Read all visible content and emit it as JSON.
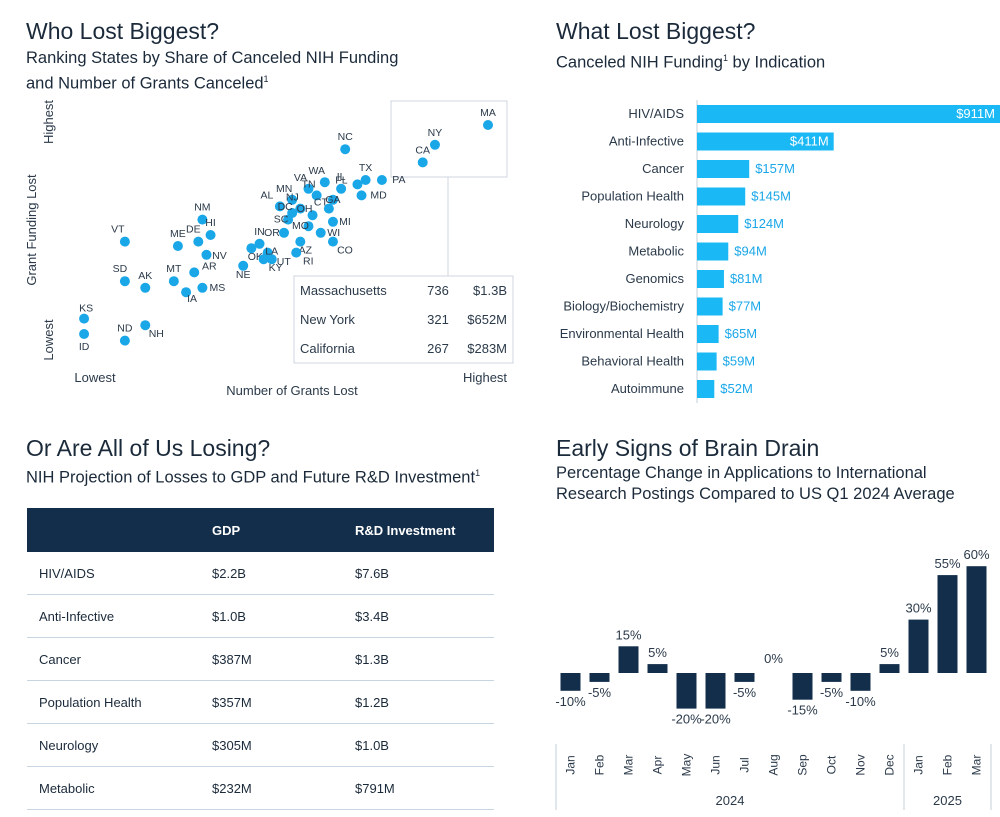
{
  "panel1": {
    "title": "Who Lost Biggest?",
    "subtitle_line1": "Ranking States by Share of Canceled NIH Funding",
    "subtitle_line2": "and Number of Grants Canceled",
    "subtitle_sup": "1"
  },
  "panel2": {
    "title": "What Lost Biggest?",
    "subtitle": "Canceled NIH Funding",
    "subtitle_sup": "1",
    "subtitle_tail": " by Indication"
  },
  "panel3": {
    "title": "Or Are All of Us Losing?",
    "subtitle": "NIH Projection of Losses to GDP and Future R&D Investment",
    "subtitle_sup": "1"
  },
  "panel4": {
    "title": "Early Signs of Brain Drain",
    "subtitle_line1": "Percentage Change in Applications to International",
    "subtitle_line2": "Research Postings Compared to US Q1 2024 Average"
  },
  "table": {
    "headers": [
      "",
      "GDP",
      "R&D Investment"
    ],
    "rows": [
      [
        "HIV/AIDS",
        "$2.2B",
        "$7.6B"
      ],
      [
        "Anti-Infective",
        "$1.0B",
        "$3.4B"
      ],
      [
        "Cancer",
        "$387M",
        "$1.3B"
      ],
      [
        "Population Health",
        "$357M",
        "$1.2B"
      ],
      [
        "Neurology",
        "$305M",
        "$1.0B"
      ],
      [
        "Metabolic",
        "$232M",
        "$791M"
      ]
    ]
  },
  "colors": {
    "scatter_point": "#1aa7e8",
    "hbar": "#1ab8f5",
    "hbar_label": "#1aa7e8",
    "vbar": "#132e4b",
    "header_bg": "#132e4b"
  },
  "chart_data": [
    {
      "type": "scatter",
      "title": "Who Lost Biggest?",
      "xlabel": "Number of Grants Lost",
      "ylabel": "Grant Funding Lost",
      "x_low_label": "Lowest",
      "x_high_label": "Highest",
      "y_low_label": "Lowest",
      "y_high_label": "Highest",
      "xlim": [
        0,
        100
      ],
      "ylim": [
        0,
        100
      ],
      "points": [
        {
          "label": "MA",
          "x": 100,
          "y": 100
        },
        {
          "label": "NY",
          "x": 87,
          "y": 91
        },
        {
          "label": "CA",
          "x": 84,
          "y": 83
        },
        {
          "label": "NC",
          "x": 65,
          "y": 89
        },
        {
          "label": "TX",
          "x": 70,
          "y": 75
        },
        {
          "label": "PA",
          "x": 74,
          "y": 75
        },
        {
          "label": "FL",
          "x": 68,
          "y": 73
        },
        {
          "label": "MD",
          "x": 69,
          "y": 68
        },
        {
          "label": "IL",
          "x": 64,
          "y": 71
        },
        {
          "label": "WA",
          "x": 60,
          "y": 74
        },
        {
          "label": "VA",
          "x": 56,
          "y": 71
        },
        {
          "label": "TN",
          "x": 58,
          "y": 68
        },
        {
          "label": "MN",
          "x": 52,
          "y": 66
        },
        {
          "label": "NJ",
          "x": 54,
          "y": 62
        },
        {
          "label": "GA",
          "x": 62,
          "y": 66
        },
        {
          "label": "OH",
          "x": 57,
          "y": 59
        },
        {
          "label": "CT",
          "x": 61,
          "y": 62
        },
        {
          "label": "MI",
          "x": 62,
          "y": 56
        },
        {
          "label": "AL",
          "x": 49,
          "y": 63
        },
        {
          "label": "DC",
          "x": 52,
          "y": 60
        },
        {
          "label": "SC",
          "x": 51,
          "y": 57
        },
        {
          "label": "MO",
          "x": 56,
          "y": 54
        },
        {
          "label": "WI",
          "x": 59,
          "y": 51
        },
        {
          "label": "CO",
          "x": 62,
          "y": 47
        },
        {
          "label": "AZ",
          "x": 54,
          "y": 47
        },
        {
          "label": "OR",
          "x": 50,
          "y": 51
        },
        {
          "label": "RI",
          "x": 53,
          "y": 42
        },
        {
          "label": "UT",
          "x": 47,
          "y": 39
        },
        {
          "label": "IN",
          "x": 44,
          "y": 46
        },
        {
          "label": "OK",
          "x": 42,
          "y": 44
        },
        {
          "label": "LA",
          "x": 46,
          "y": 42
        },
        {
          "label": "KY",
          "x": 45,
          "y": 39
        },
        {
          "label": "NE",
          "x": 40,
          "y": 36
        },
        {
          "label": "NM",
          "x": 30,
          "y": 57
        },
        {
          "label": "HI",
          "x": 32,
          "y": 50
        },
        {
          "label": "DE",
          "x": 29,
          "y": 47
        },
        {
          "label": "NV",
          "x": 31,
          "y": 41
        },
        {
          "label": "ME",
          "x": 24,
          "y": 45
        },
        {
          "label": "AR",
          "x": 28,
          "y": 33
        },
        {
          "label": "MT",
          "x": 23,
          "y": 29
        },
        {
          "label": "IA",
          "x": 26,
          "y": 24
        },
        {
          "label": "MS",
          "x": 30,
          "y": 26
        },
        {
          "label": "AK",
          "x": 16,
          "y": 26
        },
        {
          "label": "NH",
          "x": 16,
          "y": 9
        },
        {
          "label": "VT",
          "x": 11,
          "y": 47
        },
        {
          "label": "SD",
          "x": 11,
          "y": 29
        },
        {
          "label": "ND",
          "x": 11,
          "y": 2
        },
        {
          "label": "KS",
          "x": 1,
          "y": 12
        },
        {
          "label": "ID",
          "x": 1,
          "y": 5
        }
      ],
      "inset_table": [
        [
          "Massachusetts",
          "736",
          "$1.3B"
        ],
        [
          "New York",
          "321",
          "$652M"
        ],
        [
          "California",
          "267",
          "$283M"
        ]
      ]
    },
    {
      "type": "bar",
      "orientation": "horizontal",
      "title": "What Lost Biggest?",
      "categories": [
        "HIV/AIDS",
        "Anti-Infective",
        "Cancer",
        "Population Health",
        "Neurology",
        "Metabolic",
        "Genomics",
        "Biology/Biochemistry",
        "Environmental Health",
        "Behavioral Health",
        "Autoimmune"
      ],
      "values": [
        911,
        411,
        157,
        145,
        124,
        94,
        81,
        77,
        65,
        59,
        52
      ],
      "value_labels": [
        "$911M",
        "$411M",
        "$157M",
        "$145M",
        "$124M",
        "$94M",
        "$81M",
        "$77M",
        "$65M",
        "$59M",
        "$52M"
      ],
      "unit": "$M",
      "xlim": [
        0,
        911
      ]
    },
    {
      "type": "table",
      "title": "Or Are All of Us Losing?",
      "columns": [
        "",
        "GDP",
        "R&D Investment"
      ],
      "rows": [
        [
          "HIV/AIDS",
          "$2.2B",
          "$7.6B"
        ],
        [
          "Anti-Infective",
          "$1.0B",
          "$3.4B"
        ],
        [
          "Cancer",
          "$387M",
          "$1.3B"
        ],
        [
          "Population Health",
          "$357M",
          "$1.2B"
        ],
        [
          "Neurology",
          "$305M",
          "$1.0B"
        ],
        [
          "Metabolic",
          "$232M",
          "$791M"
        ]
      ]
    },
    {
      "type": "bar",
      "orientation": "vertical",
      "title": "Early Signs of Brain Drain",
      "categories": [
        "Jan",
        "Feb",
        "Mar",
        "Apr",
        "May",
        "Jun",
        "Jul",
        "Aug",
        "Sep",
        "Oct",
        "Nov",
        "Dec",
        "Jan",
        "Feb",
        "Mar"
      ],
      "values": [
        -10,
        -5,
        15,
        5,
        -20,
        -20,
        -5,
        0,
        -15,
        -5,
        -10,
        5,
        30,
        55,
        60
      ],
      "value_labels": [
        "-10%",
        "-5%",
        "15%",
        "5%",
        "-20%",
        "-20%",
        "-5%",
        "0%",
        "-15%",
        "-5%",
        "-10%",
        "5%",
        "30%",
        "55%",
        "60%"
      ],
      "groups": [
        {
          "label": "2024",
          "count": 12
        },
        {
          "label": "2025",
          "count": 3
        }
      ],
      "ylim": [
        -25,
        65
      ]
    }
  ]
}
